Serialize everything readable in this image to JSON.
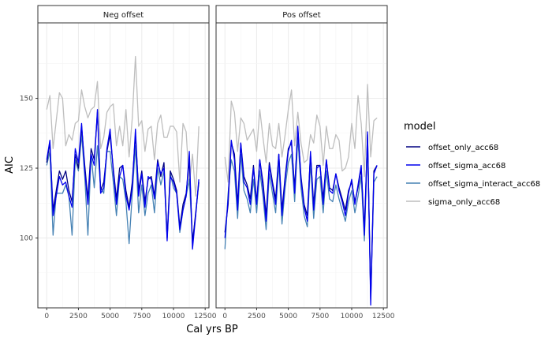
{
  "chart_data": {
    "type": "line",
    "xlabel": "Cal yrs BP",
    "ylabel": "AIC",
    "xticks": [
      0,
      2500,
      5000,
      7500,
      10000,
      12500
    ],
    "xtick_labels": [
      "0",
      "2500",
      "5000",
      "7500",
      "10000",
      "12500"
    ],
    "yticks": [
      100,
      125,
      150
    ],
    "ytick_labels": [
      "100",
      "125",
      "150"
    ],
    "xlim": [
      -700,
      12800
    ],
    "ylim": [
      75,
      177
    ],
    "grid": true,
    "legend": {
      "title": "model",
      "position": "right",
      "entries": [
        "offset_only_acc68",
        "offset_sigma_acc68",
        "offset_sigma_interact_acc68",
        "sigma_only_acc68"
      ]
    },
    "series_colors": {
      "offset_only_acc68": "#000080",
      "offset_sigma_acc68": "#0000ee",
      "offset_sigma_interact_acc68": "#4682b4",
      "sigma_only_acc68": "#bebebe"
    },
    "panels": [
      {
        "label": "Neg offset",
        "series": [
          {
            "name": "sigma_only_acc68",
            "x": [
              0,
              250,
              500,
              750,
              1000,
              1250,
              1500,
              1750,
              2000,
              2250,
              2500,
              2750,
              3000,
              3250,
              3500,
              3750,
              4000,
              4250,
              4500,
              4750,
              5000,
              5250,
              5500,
              5750,
              6000,
              6250,
              6500,
              6750,
              7000,
              7250,
              7500,
              7750,
              8000,
              8250,
              8500,
              8750,
              9000,
              9250,
              9500,
              9750,
              10000,
              10250,
              10500,
              10750,
              11000,
              11250,
              11500,
              11750,
              12000
            ],
            "y": [
              146,
              151,
              132,
              142,
              152,
              150,
              133,
              137,
              135,
              141,
              142,
              153,
              147,
              143,
              146,
              147,
              156,
              132,
              136,
              145,
              147,
              148,
              133,
              140,
              133,
              146,
              129,
              143,
              165,
              140,
              142,
              131,
              139,
              140,
              128,
              141,
              144,
              136,
              136,
              140,
              140,
              138,
              120,
              141,
              138,
              119,
              130,
              115,
              140
            ]
          },
          {
            "name": "offset_only_acc68",
            "x": [
              0,
              250,
              500,
              750,
              1000,
              1250,
              1500,
              1750,
              2000,
              2250,
              2500,
              2750,
              3000,
              3250,
              3500,
              3750,
              4000,
              4250,
              4500,
              4750,
              5000,
              5250,
              5500,
              5750,
              6000,
              6250,
              6500,
              6750,
              7000,
              7250,
              7500,
              7750,
              8000,
              8250,
              8500,
              8750,
              9000,
              9250,
              9500,
              9750,
              10000,
              10250,
              10500,
              10750,
              11000,
              11250,
              11500,
              11750,
              12000
            ],
            "y": [
              127,
              134,
              110,
              117,
              124,
              121,
              124,
              117,
              113,
              130,
              125,
              140,
              126,
              114,
              132,
              128,
              145,
              117,
              120,
              131,
              137,
              125,
              114,
              125,
              126,
              117,
              111,
              120,
              137,
              117,
              124,
              113,
              121,
              122,
              115,
              128,
              122,
              127,
              100,
              124,
              121,
              117,
              104,
              112,
              116,
              128,
              98,
              109,
              120
            ]
          },
          {
            "name": "offset_sigma_acc68",
            "x": [
              0,
              250,
              500,
              750,
              1000,
              1250,
              1500,
              1750,
              2000,
              2250,
              2500,
              2750,
              3000,
              3250,
              3500,
              3750,
              4000,
              4250,
              4500,
              4750,
              5000,
              5250,
              5500,
              5750,
              6000,
              6250,
              6500,
              6750,
              7000,
              7250,
              7500,
              7750,
              8000,
              8250,
              8500,
              8750,
              9000,
              9250,
              9500,
              9750,
              10000,
              10250,
              10500,
              10750,
              11000,
              11250,
              11500,
              11750,
              12000
            ],
            "y": [
              128,
              135,
              108,
              115,
              122,
              119,
              120,
              115,
              111,
              132,
              127,
              141,
              124,
              112,
              130,
              126,
              146,
              116,
              118,
              132,
              139,
              124,
              112,
              122,
              126,
              115,
              110,
              118,
              139,
              115,
              123,
              111,
              122,
              121,
              114,
              127,
              123,
              125,
              99,
              122,
              120,
              116,
              103,
              110,
              115,
              131,
              96,
              108,
              121
            ]
          },
          {
            "name": "offset_sigma_interact_acc68",
            "x": [
              0,
              250,
              500,
              750,
              1000,
              1250,
              1500,
              1750,
              2000,
              2250,
              2500,
              2750,
              3000,
              3250,
              3500,
              3750,
              4000,
              4250,
              4500,
              4750,
              5000,
              5250,
              5500,
              5750,
              6000,
              6250,
              6500,
              6750,
              7000,
              7250,
              7500,
              7750,
              8000,
              8250,
              8500,
              8750,
              9000,
              9250,
              9500,
              9750,
              10000,
              10250,
              10500,
              10750,
              11000,
              11250,
              11500,
              11750,
              12000
            ],
            "y": [
              126,
              131,
              101,
              116,
              116,
              116,
              119,
              115,
              101,
              128,
              124,
              137,
              122,
              101,
              130,
              118,
              133,
              118,
              116,
              131,
              131,
              120,
              108,
              122,
              121,
              113,
              98,
              116,
              133,
              109,
              119,
              108,
              116,
              119,
              109,
              125,
              119,
              124,
              100,
              123,
              118,
              116,
              102,
              110,
              115,
              121,
              99,
              108,
              120
            ]
          }
        ]
      },
      {
        "label": "Pos offset",
        "series": [
          {
            "name": "sigma_only_acc68",
            "x": [
              0,
              250,
              500,
              750,
              1000,
              1250,
              1500,
              1750,
              2000,
              2250,
              2500,
              2750,
              3000,
              3250,
              3500,
              3750,
              4000,
              4250,
              4500,
              4750,
              5000,
              5250,
              5500,
              5750,
              6000,
              6250,
              6500,
              6750,
              7000,
              7250,
              7500,
              7750,
              8000,
              8250,
              8500,
              8750,
              9000,
              9250,
              9500,
              9750,
              10000,
              10250,
              10500,
              10750,
              11000,
              11250,
              11500,
              11750,
              12000
            ],
            "y": [
              129,
              120,
              149,
              145,
              131,
              143,
              141,
              135,
              137,
              139,
              131,
              146,
              136,
              127,
              141,
              133,
              132,
              141,
              129,
              137,
              146,
              153,
              133,
              145,
              134,
              127,
              128,
              137,
              134,
              144,
              140,
              126,
              140,
              132,
              132,
              137,
              135,
              124,
              125,
              129,
              141,
              132,
              151,
              141,
              122,
              155,
              129,
              142,
              143
            ]
          },
          {
            "name": "offset_only_acc68",
            "x": [
              0,
              250,
              500,
              750,
              1000,
              1250,
              1500,
              1750,
              2000,
              2250,
              2500,
              2750,
              3000,
              3250,
              3500,
              3750,
              4000,
              4250,
              4500,
              4750,
              5000,
              5250,
              5500,
              5750,
              6000,
              6250,
              6500,
              6750,
              7000,
              7250,
              7500,
              7750,
              8000,
              8250,
              8500,
              8750,
              9000,
              9250,
              9500,
              9750,
              10000,
              10250,
              10500,
              10750,
              11000,
              11250,
              11500,
              11750,
              12000
            ],
            "y": [
              102,
              112,
              134,
              130,
              112,
              134,
              122,
              119,
              114,
              126,
              113,
              128,
              120,
              108,
              127,
              120,
              114,
              130,
              110,
              122,
              132,
              134,
              118,
              139,
              122,
              112,
              108,
              130,
              112,
              126,
              126,
              114,
              128,
              118,
              117,
              123,
              118,
              114,
              110,
              117,
              120,
              113,
              118,
              125,
              103,
              137,
              78,
              124,
              126
            ]
          },
          {
            "name": "offset_sigma_acc68",
            "x": [
              0,
              250,
              500,
              750,
              1000,
              1250,
              1500,
              1750,
              2000,
              2250,
              2500,
              2750,
              3000,
              3250,
              3500,
              3750,
              4000,
              4250,
              4500,
              4750,
              5000,
              5250,
              5500,
              5750,
              6000,
              6250,
              6500,
              6750,
              7000,
              7250,
              7500,
              7750,
              8000,
              8250,
              8500,
              8750,
              9000,
              9250,
              9500,
              9750,
              10000,
              10250,
              10500,
              10750,
              11000,
              11250,
              11500,
              11750,
              12000
            ],
            "y": [
              100,
              114,
              135,
              128,
              110,
              134,
              120,
              118,
              112,
              125,
              112,
              128,
              118,
              106,
              126,
              119,
              112,
              130,
              108,
              121,
              131,
              135,
              116,
              140,
              121,
              111,
              106,
              131,
              110,
              125,
              126,
              112,
              128,
              117,
              116,
              123,
              117,
              113,
              108,
              116,
              121,
              112,
              119,
              126,
              101,
              138,
              76,
              123,
              126
            ]
          },
          {
            "name": "offset_sigma_interact_acc68",
            "x": [
              0,
              250,
              500,
              750,
              1000,
              1250,
              1500,
              1750,
              2000,
              2250,
              2500,
              2750,
              3000,
              3250,
              3500,
              3750,
              4000,
              4250,
              4500,
              4750,
              5000,
              5250,
              5500,
              5750,
              6000,
              6250,
              6500,
              6750,
              7000,
              7250,
              7500,
              7750,
              8000,
              8250,
              8500,
              8750,
              9000,
              9250,
              9500,
              9750,
              10000,
              10250,
              10500,
              10750,
              11000,
              11250,
              11500,
              11750,
              12000
            ],
            "y": [
              96,
              116,
              128,
              124,
              107,
              130,
              117,
              114,
              109,
              121,
              109,
              124,
              115,
              103,
              123,
              116,
              109,
              127,
              105,
              118,
              127,
              130,
              113,
              136,
              118,
              108,
              104,
              127,
              107,
              121,
              122,
              109,
              124,
              114,
              113,
              119,
              114,
              110,
              106,
              113,
              117,
              109,
              115,
              122,
              99,
              134,
              80,
              120,
              122
            ]
          }
        ]
      }
    ]
  }
}
